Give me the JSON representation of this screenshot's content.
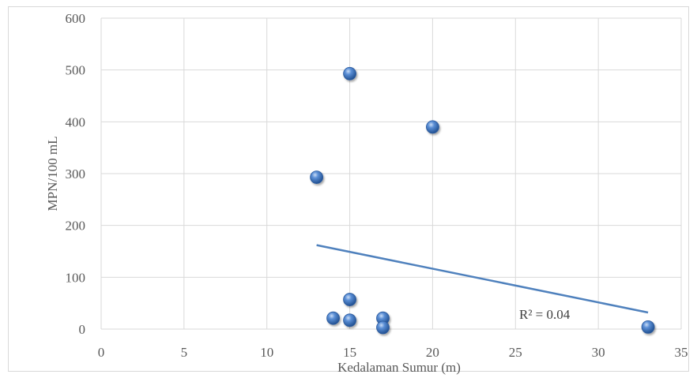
{
  "chart_data": {
    "type": "scatter",
    "title": "",
    "xlabel": "Kedalaman Sumur (m)",
    "ylabel": "MPN/100 mL",
    "xlim": [
      0,
      35
    ],
    "ylim": [
      0,
      600
    ],
    "xticks": [
      0,
      5,
      10,
      15,
      20,
      25,
      30,
      35
    ],
    "yticks": [
      0,
      100,
      200,
      300,
      400,
      500,
      600
    ],
    "grid": true,
    "legend": "none",
    "colors": {
      "marker": "#4472c4",
      "trendline": "#4f81bd",
      "grid": "#d9d9d9"
    },
    "series": [
      {
        "points": [
          {
            "x": 13,
            "y": 293
          },
          {
            "x": 14,
            "y": 21
          },
          {
            "x": 15,
            "y": 493
          },
          {
            "x": 15,
            "y": 57
          },
          {
            "x": 15,
            "y": 17
          },
          {
            "x": 17,
            "y": 21
          },
          {
            "x": 17,
            "y": 3
          },
          {
            "x": 20,
            "y": 390
          },
          {
            "x": 33,
            "y": 4
          }
        ]
      }
    ],
    "trendline": {
      "type": "linear",
      "x_start": 13,
      "y_start": 162,
      "x_end": 33,
      "y_end": 32
    },
    "annotation": "R² = 0.04"
  }
}
